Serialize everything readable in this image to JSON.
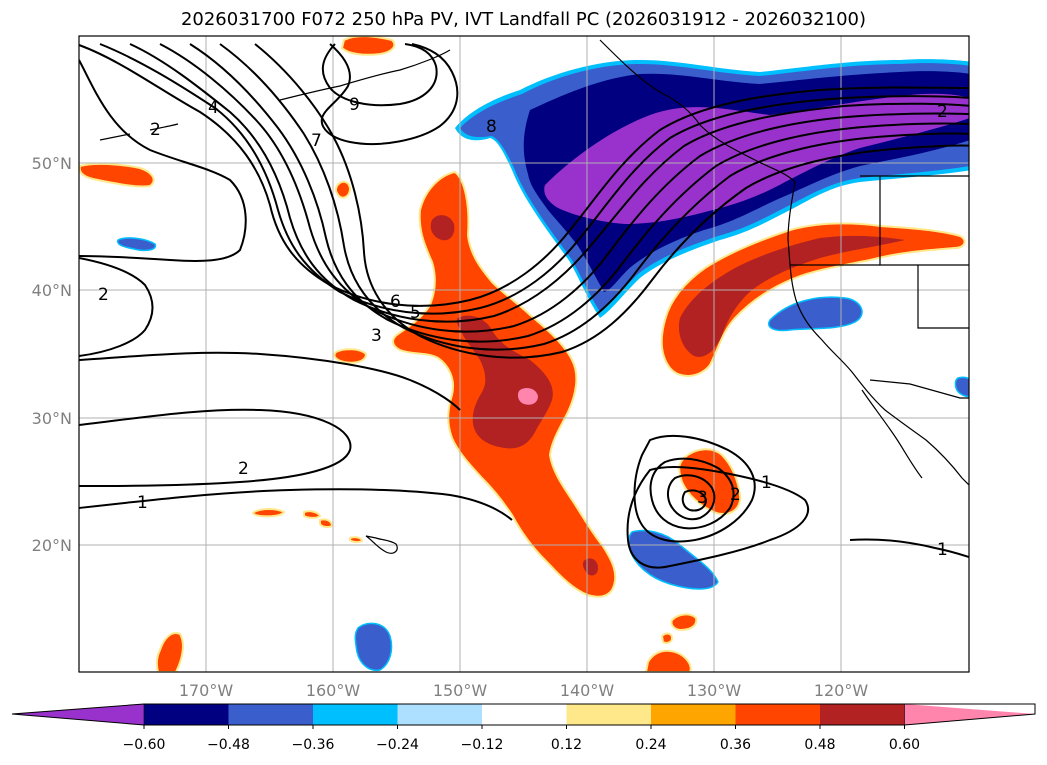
{
  "title": "2026031700 F072 250 hPa PV, IVT Landfall PC (2026031912 - 2026032100)",
  "lon_labels": [
    "170°W",
    "160°W",
    "150°W",
    "140°W",
    "130°W",
    "120°W"
  ],
  "lat_labels": [
    "50°N",
    "40°N",
    "30°N",
    "20°N"
  ],
  "contour_labels": [
    "4",
    "2",
    "7",
    "9",
    "8",
    "2",
    "6",
    "5",
    "3",
    "2",
    "2",
    "1",
    "1",
    "3",
    "2",
    "1"
  ],
  "colorbar": {
    "ticks": [
      "−0.60",
      "−0.48",
      "−0.36",
      "−0.24",
      "−0.12",
      "0.12",
      "0.24",
      "0.36",
      "0.48",
      "0.60"
    ],
    "colors": {
      "under": "#9932CC",
      "c1": "#000080",
      "c2": "#3A5FCD",
      "c3": "#00BFFF",
      "c4": "#ADDFFF",
      "c5": "#FFFFFF",
      "c6": "#FFE88A",
      "c7": "#FFA500",
      "c8": "#FF4500",
      "c9": "#B22222",
      "over": "#FF85AD"
    }
  },
  "colors": {
    "purple": "#9932CC",
    "navy": "#000080",
    "blue": "#3A5FCD",
    "cyan": "#00BFFF",
    "orange": "#FF4500",
    "red": "#B22222",
    "pink": "#FF85AD",
    "grid": "#b0b0b0"
  }
}
